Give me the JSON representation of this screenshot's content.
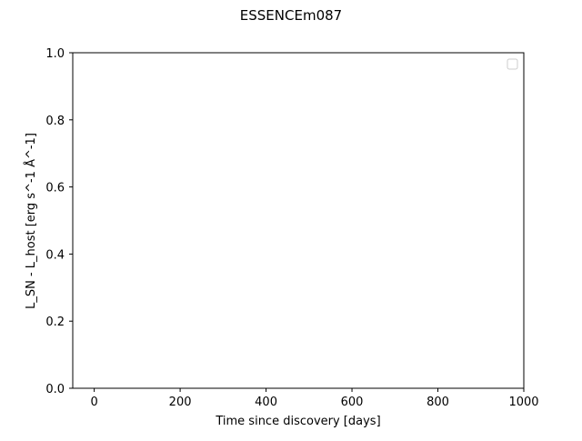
{
  "chart_data": {
    "type": "scatter",
    "title": "ESSENCEm087",
    "xlabel": "Time since discovery [days]",
    "ylabel": "L_SN - L_host [erg s^-1 Å^-1]",
    "xlim": [
      -50,
      1000
    ],
    "ylim": [
      0,
      1
    ],
    "xticks": [
      0,
      200,
      400,
      600,
      800,
      1000
    ],
    "xtick_labels": [
      "0",
      "200",
      "400",
      "600",
      "800",
      "1000"
    ],
    "yticks": [
      0,
      0.2,
      0.4,
      0.6,
      0.8,
      1.0
    ],
    "ytick_labels": [
      "0.0",
      "0.2",
      "0.4",
      "0.6",
      "0.8",
      "1.0"
    ],
    "series": [],
    "legend": {
      "placement": "top-right",
      "entries": []
    },
    "grid": false
  },
  "colors": {
    "axes": "#000000",
    "legend_border": "#cccccc",
    "background": "#ffffff"
  }
}
